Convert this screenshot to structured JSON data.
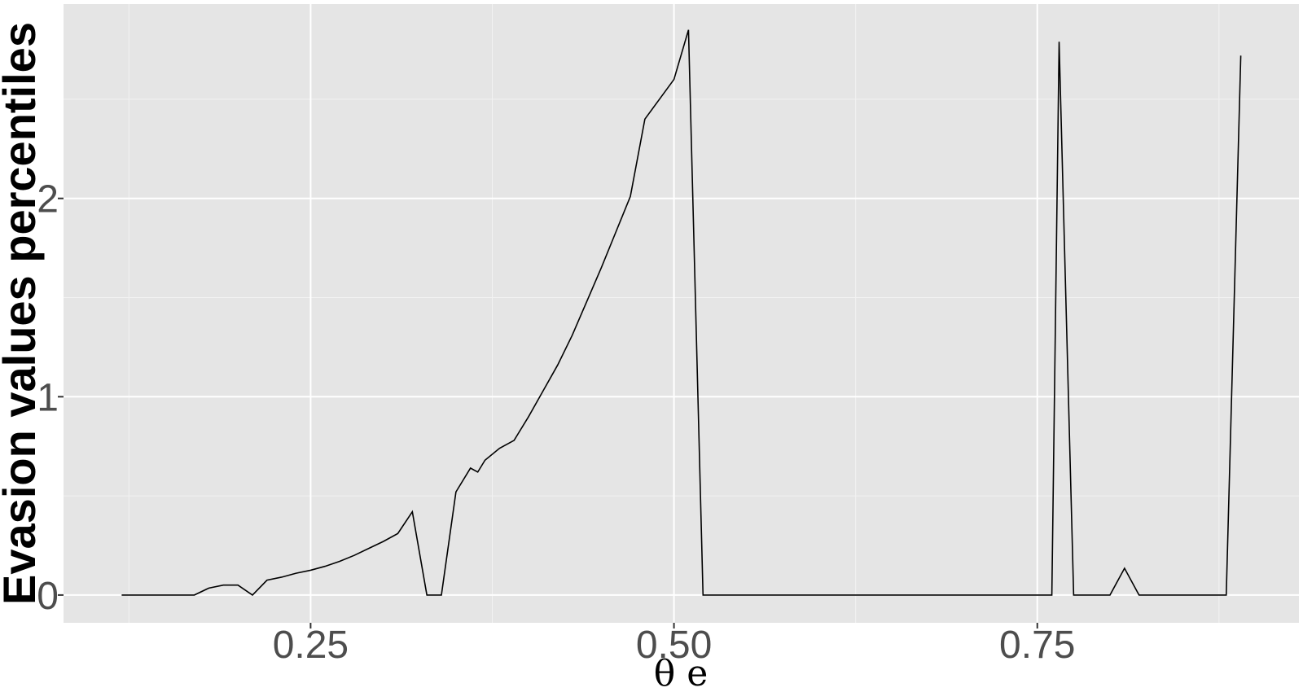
{
  "chart_data": {
    "type": "line",
    "title": "",
    "xlabel": "θ e",
    "ylabel": "Evasion values percentiles",
    "xlim": [
      0.08,
      0.93
    ],
    "ylim": [
      -0.14,
      2.98
    ],
    "x_ticks": [
      0.25,
      0.5,
      0.75
    ],
    "x_tick_labels": [
      "0.25",
      "0.50",
      "0.75"
    ],
    "y_ticks": [
      0,
      1,
      2
    ],
    "y_tick_labels": [
      "0",
      "1",
      "2"
    ],
    "grid": true,
    "legend": "none",
    "series": [
      {
        "x": [
          0.12,
          0.13,
          0.14,
          0.15,
          0.16,
          0.17,
          0.18,
          0.19,
          0.2,
          0.21,
          0.22,
          0.23,
          0.24,
          0.25,
          0.26,
          0.27,
          0.28,
          0.29,
          0.3,
          0.31,
          0.32,
          0.33,
          0.34,
          0.35,
          0.36,
          0.365,
          0.37,
          0.38,
          0.39,
          0.4,
          0.41,
          0.42,
          0.43,
          0.44,
          0.45,
          0.46,
          0.47,
          0.48,
          0.49,
          0.5,
          0.51,
          0.52,
          0.56,
          0.6,
          0.64,
          0.68,
          0.72,
          0.76,
          0.765,
          0.775,
          0.79,
          0.8,
          0.81,
          0.82,
          0.83,
          0.84,
          0.86,
          0.88,
          0.89
        ],
        "y": [
          0,
          0,
          0,
          0,
          0,
          0,
          0.035,
          0.05,
          0.05,
          0,
          0.075,
          0.09,
          0.11,
          0.125,
          0.145,
          0.17,
          0.2,
          0.235,
          0.27,
          0.31,
          0.42,
          0,
          0,
          0.52,
          0.64,
          0.62,
          0.68,
          0.74,
          0.78,
          0.9,
          1.03,
          1.16,
          1.31,
          1.48,
          1.65,
          1.83,
          2.01,
          2.4,
          2.5,
          2.6,
          2.85,
          0,
          0,
          0,
          0,
          0,
          0,
          0,
          2.79,
          0,
          0,
          0,
          0.135,
          0,
          0,
          0,
          0,
          0,
          2.72
        ]
      }
    ],
    "colors": {
      "panel": "#e5e5e5",
      "grid_major": "#ffffff",
      "grid_minor": "#f2f2f2",
      "line": "#000000"
    }
  }
}
